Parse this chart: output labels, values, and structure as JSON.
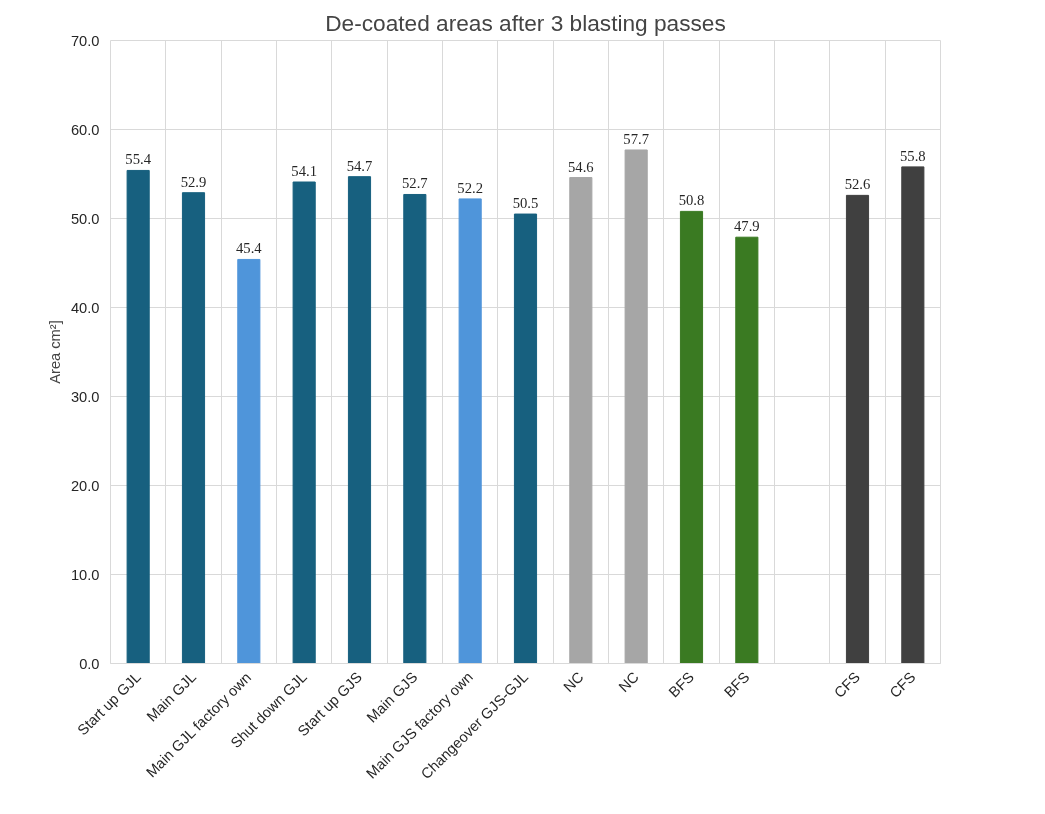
{
  "chart_data": {
    "type": "bar",
    "title": "De-coated areas after 3 blasting passes",
    "ylabel": "Area cm²]",
    "categories": [
      "Start up GJL",
      "Main GJL",
      "Main GJL factory own",
      "Shut down GJL",
      "Start up GJS",
      "Main GJS",
      "Main GJS factory own",
      "Changeover GJS-GJL",
      "NC",
      "NC",
      "BFS",
      "BFS",
      null,
      "CFS",
      "CFS"
    ],
    "values": [
      55.4,
      52.9,
      45.4,
      54.1,
      54.7,
      52.7,
      52.2,
      50.5,
      54.6,
      57.7,
      50.8,
      47.9,
      null,
      52.6,
      55.8
    ],
    "colors": [
      "#17607f",
      "#17607f",
      "#4f95da",
      "#17607f",
      "#17607f",
      "#17607f",
      "#4f95da",
      "#17607f",
      "#a6a6a6",
      "#a6a6a6",
      "#3a7a22",
      "#3a7a22",
      "#ffffff",
      "#404040",
      "#404040"
    ],
    "ylim": [
      0,
      70
    ],
    "yticks": [
      {
        "value": 0,
        "label": "0.0"
      },
      {
        "value": 10,
        "label": "10.0"
      },
      {
        "value": 20,
        "label": "20.0"
      },
      {
        "value": 30,
        "label": "30.0"
      },
      {
        "value": 40,
        "label": "40.0"
      },
      {
        "value": 50,
        "label": "50.0"
      },
      {
        "value": 60,
        "label": "60.0"
      },
      {
        "value": 70,
        "label": "70.0"
      }
    ],
    "grid": true,
    "data_labels": true
  }
}
